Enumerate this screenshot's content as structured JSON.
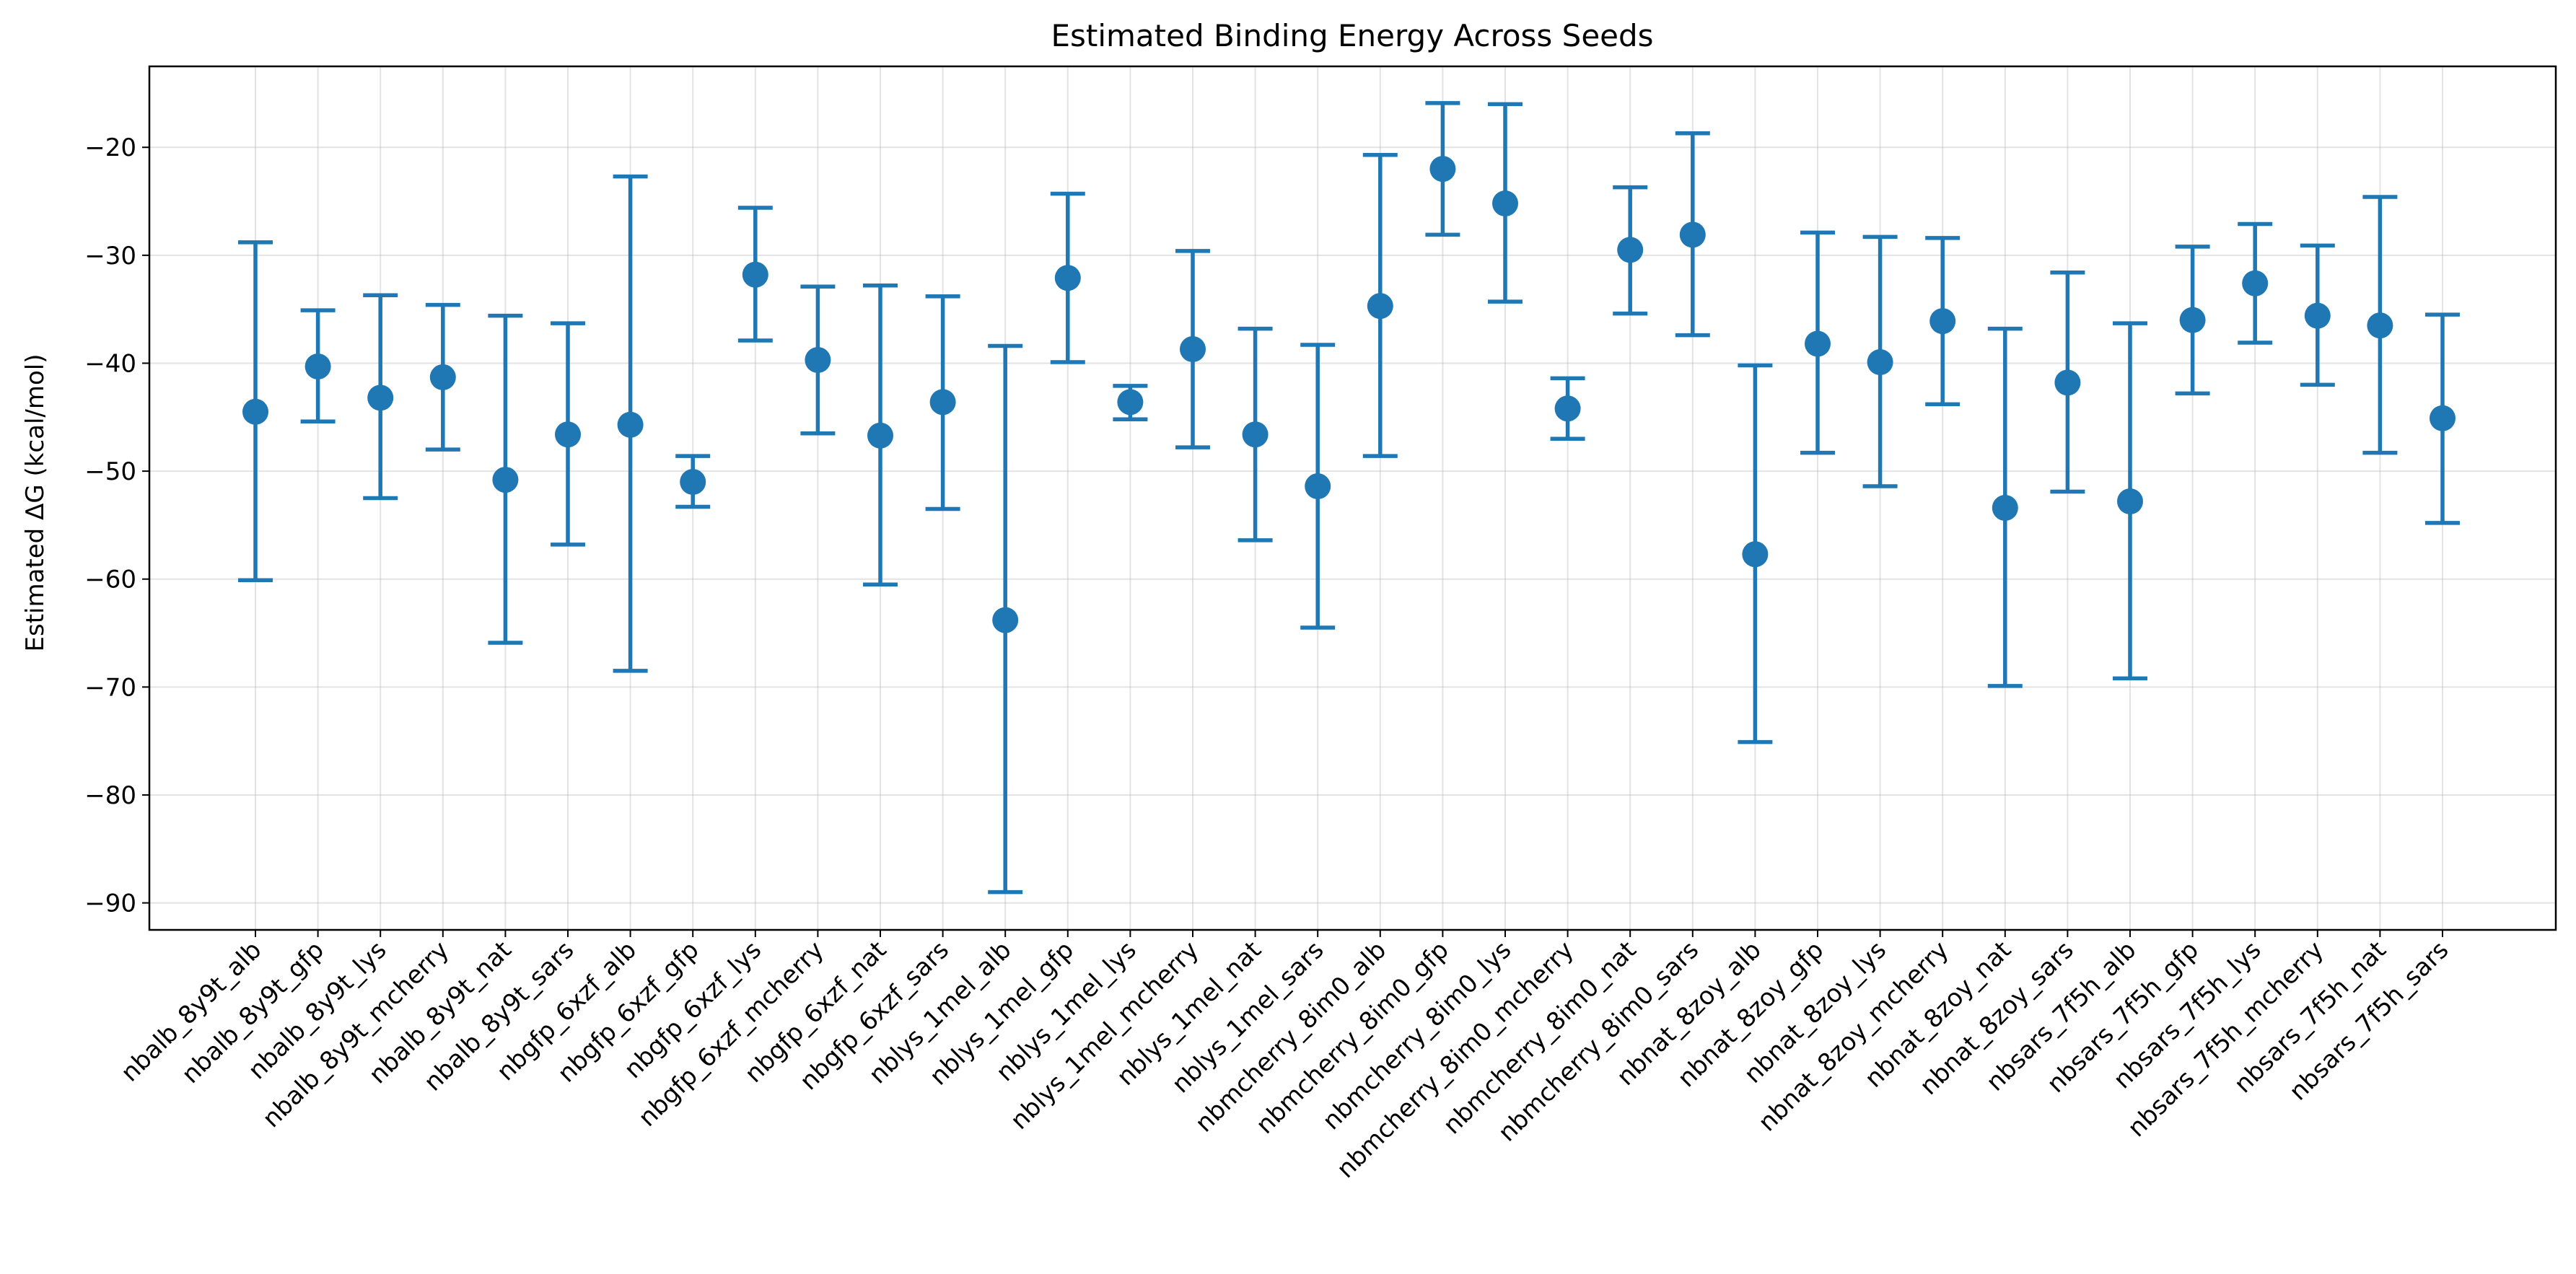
{
  "chart_data": {
    "type": "scatter",
    "title": "Estimated Binding Energy Across Seeds",
    "xlabel": "",
    "ylabel": "Estimated ΔG (kcal/mol)",
    "ylim": [
      -92.5,
      -12.5
    ],
    "yticks": [
      -90,
      -80,
      -70,
      -60,
      -50,
      -40,
      -30,
      -20
    ],
    "grid": true,
    "color": "#1f77b4",
    "categories": [
      "nbalb_8y9t_alb",
      "nbalb_8y9t_gfp",
      "nbalb_8y9t_lys",
      "nbalb_8y9t_mcherry",
      "nbalb_8y9t_nat",
      "nbalb_8y9t_sars",
      "nbgfp_6xzf_alb",
      "nbgfp_6xzf_gfp",
      "nbgfp_6xzf_lys",
      "nbgfp_6xzf_mcherry",
      "nbgfp_6xzf_nat",
      "nbgfp_6xzf_sars",
      "nblys_1mel_alb",
      "nblys_1mel_gfp",
      "nblys_1mel_lys",
      "nblys_1mel_mcherry",
      "nblys_1mel_nat",
      "nblys_1mel_sars",
      "nbmcherry_8im0_alb",
      "nbmcherry_8im0_gfp",
      "nbmcherry_8im0_lys",
      "nbmcherry_8im0_mcherry",
      "nbmcherry_8im0_nat",
      "nbmcherry_8im0_sars",
      "nbnat_8zoy_alb",
      "nbnat_8zoy_gfp",
      "nbnat_8zoy_lys",
      "nbnat_8zoy_mcherry",
      "nbnat_8zoy_nat",
      "nbnat_8zoy_sars",
      "nbsars_7f5h_alb",
      "nbsars_7f5h_gfp",
      "nbsars_7f5h_lys",
      "nbsars_7f5h_mcherry",
      "nbsars_7f5h_nat",
      "nbsars_7f5h_sars"
    ],
    "values": [
      -44.5,
      -40.3,
      -43.2,
      -41.3,
      -50.8,
      -46.6,
      -45.7,
      -51.0,
      -31.8,
      -39.7,
      -46.7,
      -43.6,
      -63.8,
      -32.1,
      -43.6,
      -38.7,
      -46.6,
      -51.4,
      -34.7,
      -22.0,
      -25.2,
      -44.2,
      -29.5,
      -28.1,
      -57.7,
      -38.2,
      -39.9,
      -36.1,
      -53.4,
      -41.8,
      -52.8,
      -36.0,
      -32.6,
      -35.6,
      -36.5,
      -45.1
    ],
    "upper": [
      -28.8,
      -35.1,
      -33.7,
      -34.6,
      -35.6,
      -36.3,
      -22.7,
      -48.6,
      -25.6,
      -32.9,
      -32.8,
      -33.8,
      -38.4,
      -24.3,
      -42.1,
      -29.6,
      -36.8,
      -38.3,
      -20.7,
      -15.9,
      -16.0,
      -41.4,
      -23.7,
      -18.7,
      -40.2,
      -27.9,
      -28.3,
      -28.4,
      -36.8,
      -31.6,
      -36.3,
      -29.2,
      -27.1,
      -29.1,
      -24.6,
      -35.5
    ],
    "lower": [
      -60.1,
      -45.4,
      -52.5,
      -48.0,
      -65.9,
      -56.8,
      -68.5,
      -53.3,
      -37.9,
      -46.5,
      -60.5,
      -53.5,
      -89.0,
      -39.9,
      -45.2,
      -47.8,
      -56.4,
      -64.5,
      -48.6,
      -28.1,
      -34.3,
      -47.0,
      -35.4,
      -37.4,
      -75.1,
      -48.3,
      -51.4,
      -43.8,
      -69.9,
      -51.9,
      -69.2,
      -42.8,
      -38.1,
      -42.0,
      -48.3,
      -54.8
    ]
  }
}
